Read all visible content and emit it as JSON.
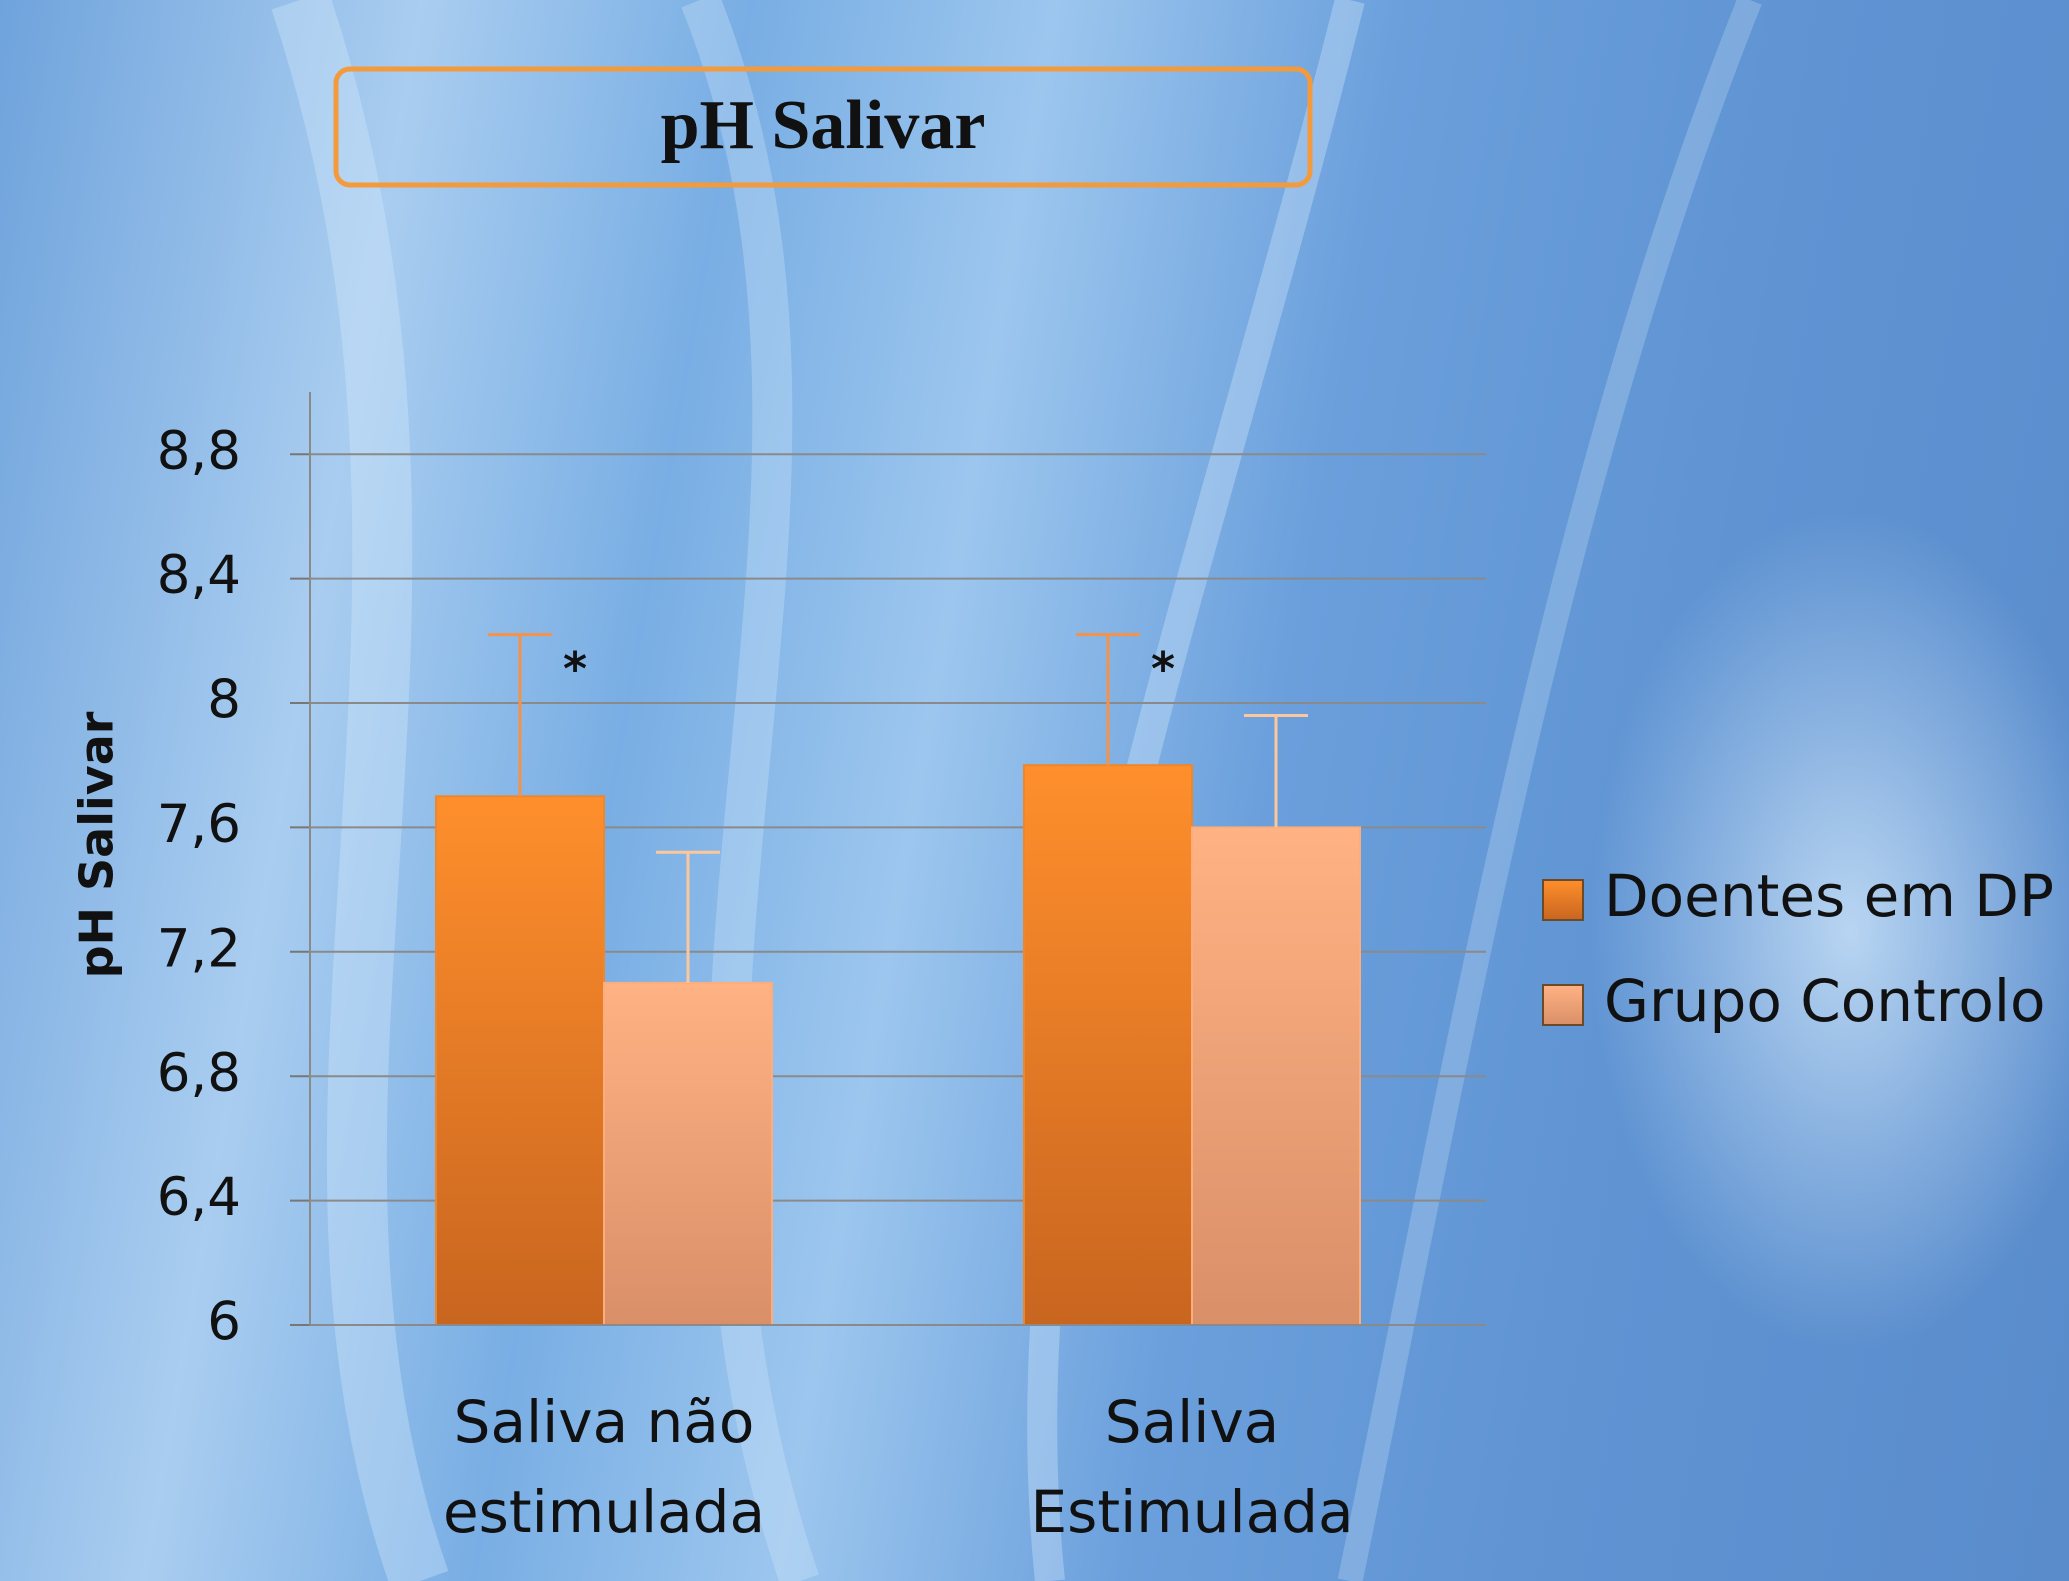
{
  "chart_data": {
    "type": "bar",
    "title": "pH Salivar",
    "y_label": "pH Salivar",
    "categories": [
      "Saliva não estimulada",
      "Saliva Estimulada"
    ],
    "series": [
      {
        "name": "Doentes em DP",
        "color": "#f0862a",
        "values": [
          7.7,
          7.8
        ],
        "errors": [
          0.52,
          0.42
        ]
      },
      {
        "name": "Grupo Controlo",
        "color": "#fdad7c",
        "values": [
          7.1,
          7.6
        ],
        "errors": [
          0.42,
          0.36
        ]
      }
    ],
    "annotations": [
      "*",
      "*"
    ],
    "ylim": [
      6,
      9
    ],
    "yticks": [
      6,
      {
        "value": 6.4,
        "label": "6,4"
      },
      {
        "value": 6.8,
        "label": "6,8"
      },
      {
        "value": 7.2,
        "label": "7,2"
      },
      {
        "value": 7.6,
        "label": "7,6"
      },
      8,
      {
        "value": 8.4,
        "label": "8,4"
      },
      {
        "value": 8.8,
        "label": "8,8"
      }
    ],
    "grid": true,
    "legend": "right"
  }
}
